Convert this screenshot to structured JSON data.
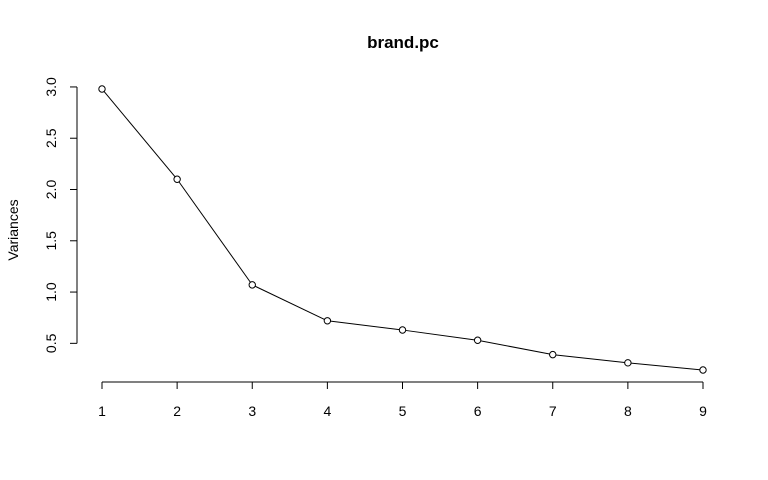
{
  "chart_data": {
    "type": "line",
    "title": "brand.pc",
    "xlabel": "",
    "ylabel": "Variances",
    "x": [
      1,
      2,
      3,
      4,
      5,
      6,
      7,
      8,
      9
    ],
    "x_ticks": [
      "1",
      "2",
      "3",
      "4",
      "5",
      "6",
      "7",
      "8",
      "9"
    ],
    "y_ticks": [
      "0.5",
      "1.0",
      "1.5",
      "2.0",
      "2.5",
      "3.0"
    ],
    "y_tick_values": [
      0.5,
      1.0,
      1.5,
      2.0,
      2.5,
      3.0
    ],
    "series": [
      {
        "values": [
          2.98,
          2.1,
          1.07,
          0.72,
          0.63,
          0.53,
          0.39,
          0.31,
          0.24
        ]
      }
    ],
    "xlim": [
      1,
      9
    ],
    "ylim": [
      0.24,
      2.98
    ],
    "grid": false,
    "colors": {
      "line": "#000000",
      "points": "#000000",
      "background": "#ffffff"
    }
  }
}
